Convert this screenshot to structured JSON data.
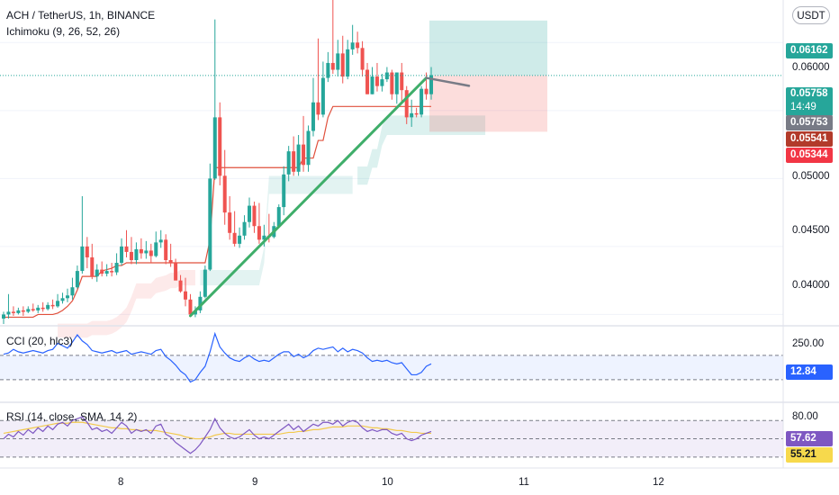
{
  "header": {
    "symbol": "ACH / TetherUS, 1h, BINANCE",
    "indicator": "Ichimoku (9, 26, 52, 26)",
    "currency": "USDT"
  },
  "colors": {
    "up": "#26a69a",
    "down": "#ef5350",
    "kijun": "#e0503c",
    "trendline": "#3fae6a",
    "cci_line": "#2962ff",
    "rsi_line": "#7e57c2",
    "rsi_ma": "#f2c94c",
    "target_zone": "#26a69a",
    "stop_zone": "#ef5350"
  },
  "price_axis": {
    "range": [
      0.0393,
      0.0628
    ],
    "ticks": [
      "0.06000",
      "0.05000",
      "0.04500",
      "0.04000"
    ]
  },
  "tags": {
    "target": "0.06162",
    "last": "0.05758",
    "countdown": "14:49",
    "grey": "0.05753",
    "dark_red": "0.05541",
    "red": "0.05344",
    "cci": "12.84",
    "rsi": "57.62",
    "rsi_ma": "55.21"
  },
  "x_axis": {
    "ticks": [
      "8",
      "9",
      "10",
      "11",
      "12"
    ]
  },
  "cci": {
    "label": "CCI (20, hlc3)",
    "tick": "250.00"
  },
  "rsi": {
    "label": "RSI (14, close, SMA, 14, 2)",
    "tick": "80.00"
  },
  "chart_data": {
    "type": "candlestick",
    "o": [
      0.0397,
      0.04,
      0.0402,
      0.0401,
      0.0403,
      0.0402,
      0.0404,
      0.0403,
      0.0405,
      0.0404,
      0.0407,
      0.0406,
      0.041,
      0.0412,
      0.0414,
      0.042,
      0.0432,
      0.045,
      0.0442,
      0.0428,
      0.0433,
      0.043,
      0.0432,
      0.0431,
      0.0438,
      0.045,
      0.0446,
      0.044,
      0.0448,
      0.0445,
      0.0447,
      0.0443,
      0.0453,
      0.0455,
      0.044,
      0.0438,
      0.0425,
      0.0417,
      0.0411,
      0.04,
      0.0403,
      0.0413,
      0.0433,
      0.05,
      0.0545,
      0.0502,
      0.0475,
      0.046,
      0.0452,
      0.0458,
      0.0468,
      0.048,
      0.0465,
      0.0455,
      0.0458,
      0.0457,
      0.0465,
      0.0479,
      0.0503,
      0.052,
      0.0505,
      0.0525,
      0.051,
      0.0535,
      0.0556,
      0.0547,
      0.0574,
      0.0585,
      0.058,
      0.0592,
      0.0575,
      0.0595,
      0.06,
      0.0596,
      0.058,
      0.0562,
      0.0575,
      0.0568,
      0.0573,
      0.0578,
      0.0562,
      0.0578,
      0.0565,
      0.0545,
      0.0548,
      0.0547,
      0.0566,
      0.0562
    ],
    "h": [
      0.0402,
      0.0415,
      0.0406,
      0.0405,
      0.0406,
      0.0406,
      0.0408,
      0.0407,
      0.0409,
      0.0409,
      0.0411,
      0.0415,
      0.0416,
      0.0419,
      0.0427,
      0.0436,
      0.0487,
      0.0457,
      0.0452,
      0.0437,
      0.0439,
      0.0437,
      0.0438,
      0.0445,
      0.0456,
      0.0462,
      0.0457,
      0.0453,
      0.0456,
      0.0454,
      0.0452,
      0.0461,
      0.0462,
      0.0459,
      0.0452,
      0.0441,
      0.0429,
      0.0427,
      0.0415,
      0.0406,
      0.0417,
      0.0436,
      0.0511,
      0.0617,
      0.0556,
      0.0521,
      0.0487,
      0.0476,
      0.0464,
      0.0473,
      0.0486,
      0.0483,
      0.0482,
      0.0466,
      0.0474,
      0.0468,
      0.0481,
      0.0509,
      0.0524,
      0.0531,
      0.0532,
      0.0546,
      0.0539,
      0.0574,
      0.0603,
      0.0586,
      0.0593,
      0.0632,
      0.0602,
      0.0605,
      0.0602,
      0.0613,
      0.0608,
      0.0601,
      0.0585,
      0.0582,
      0.0585,
      0.0577,
      0.0582,
      0.058,
      0.0578,
      0.0585,
      0.0568,
      0.0558,
      0.0552,
      0.0568,
      0.0578,
      0.0582
    ],
    "l": [
      0.0393,
      0.0397,
      0.0399,
      0.04,
      0.0399,
      0.0401,
      0.0402,
      0.0401,
      0.0402,
      0.0403,
      0.0404,
      0.0405,
      0.0408,
      0.0409,
      0.0411,
      0.0419,
      0.043,
      0.0434,
      0.0426,
      0.0424,
      0.0428,
      0.0428,
      0.0428,
      0.0429,
      0.0436,
      0.0442,
      0.0437,
      0.0437,
      0.0441,
      0.0441,
      0.0438,
      0.0442,
      0.0449,
      0.0437,
      0.0435,
      0.0426,
      0.0416,
      0.0406,
      0.04,
      0.0398,
      0.0401,
      0.0412,
      0.0432,
      0.0499,
      0.0495,
      0.0466,
      0.0455,
      0.045,
      0.0449,
      0.0455,
      0.0464,
      0.046,
      0.0452,
      0.045,
      0.0453,
      0.0456,
      0.0465,
      0.0473,
      0.0498,
      0.0502,
      0.0502,
      0.0505,
      0.0505,
      0.0531,
      0.0543,
      0.0545,
      0.0571,
      0.0577,
      0.0575,
      0.057,
      0.0573,
      0.0591,
      0.0592,
      0.0575,
      0.0562,
      0.0562,
      0.0564,
      0.0564,
      0.0571,
      0.0558,
      0.0555,
      0.0556,
      0.054,
      0.0538,
      0.0545,
      0.0545,
      0.0558,
      0.0558
    ],
    "c": [
      0.04,
      0.0402,
      0.0401,
      0.0403,
      0.0402,
      0.0404,
      0.0403,
      0.0405,
      0.0404,
      0.0407,
      0.0406,
      0.041,
      0.0412,
      0.0414,
      0.042,
      0.0432,
      0.045,
      0.0442,
      0.0428,
      0.0433,
      0.043,
      0.0432,
      0.0431,
      0.0438,
      0.045,
      0.0446,
      0.044,
      0.0448,
      0.0445,
      0.0447,
      0.0443,
      0.0453,
      0.0455,
      0.044,
      0.0438,
      0.0425,
      0.0417,
      0.0411,
      0.04,
      0.0403,
      0.0413,
      0.0433,
      0.05,
      0.0545,
      0.0502,
      0.0475,
      0.046,
      0.0452,
      0.0458,
      0.0468,
      0.048,
      0.0465,
      0.0455,
      0.0458,
      0.0457,
      0.0465,
      0.0479,
      0.0503,
      0.052,
      0.0505,
      0.0525,
      0.051,
      0.0535,
      0.0556,
      0.0547,
      0.0574,
      0.0585,
      0.058,
      0.0592,
      0.0575,
      0.0595,
      0.06,
      0.0596,
      0.058,
      0.0562,
      0.0575,
      0.0568,
      0.0573,
      0.0578,
      0.0562,
      0.0578,
      0.0565,
      0.0545,
      0.0548,
      0.0547,
      0.0566,
      0.0562,
      0.0576
    ],
    "kijun": [
      0.0398,
      0.0398,
      0.0398,
      0.0398,
      0.0398,
      0.0398,
      0.0398,
      0.04,
      0.04,
      0.04,
      0.04,
      0.0401,
      0.0403,
      0.0406,
      0.041,
      0.0418,
      0.0428,
      0.0428,
      0.0428,
      0.0428,
      0.0432,
      0.0433,
      0.0434,
      0.0436,
      0.0436,
      0.0438,
      0.0438,
      0.0438,
      0.0438,
      0.0438,
      0.0438,
      0.0438,
      0.0438,
      0.0438,
      0.0438,
      0.0438,
      0.0438,
      0.0438,
      0.0438,
      0.0438,
      0.0438,
      0.0438,
      0.0455,
      0.0508,
      0.0508,
      0.0508,
      0.0508,
      0.0508,
      0.0508,
      0.0508,
      0.0508,
      0.0508,
      0.0508,
      0.0508,
      0.0508,
      0.0508,
      0.0508,
      0.0508,
      0.0508,
      0.0508,
      0.0508,
      0.0515,
      0.0515,
      0.0515,
      0.0528,
      0.0528,
      0.0545,
      0.0553,
      0.0553,
      0.0553,
      0.0553,
      0.0553,
      0.0553,
      0.0553,
      0.0553,
      0.0553,
      0.0553,
      0.0553,
      0.0553,
      0.0553,
      0.0553,
      0.0553,
      0.0553,
      0.0553,
      0.0553,
      0.0553,
      0.0553,
      0.0553
    ],
    "trendline": {
      "from": 0.0399,
      "to": 0.0574
    },
    "long_position": {
      "entry": 0.05758,
      "target": 0.06162,
      "stop": 0.05344
    },
    "cci_values": [
      110,
      120,
      150,
      130,
      120,
      130,
      140,
      130,
      120,
      140,
      150,
      200,
      180,
      160,
      210,
      270,
      220,
      190,
      140,
      130,
      120,
      130,
      140,
      120,
      130,
      140,
      110,
      120,
      130,
      120,
      110,
      140,
      150,
      90,
      60,
      20,
      -30,
      -60,
      -120,
      -100,
      -40,
      10,
      130,
      280,
      170,
      120,
      80,
      60,
      50,
      80,
      100,
      70,
      50,
      60,
      50,
      80,
      110,
      130,
      130,
      90,
      110,
      80,
      100,
      140,
      160,
      150,
      160,
      170,
      130,
      160,
      130,
      150,
      140,
      120,
      80,
      50,
      60,
      50,
      60,
      40,
      30,
      40,
      -10,
      -60,
      -60,
      -40,
      10,
      30
    ],
    "cci_levels": [
      100,
      -100
    ],
    "rsi_values": [
      50,
      55,
      52,
      58,
      54,
      60,
      56,
      62,
      58,
      64,
      60,
      66,
      68,
      64,
      70,
      72,
      74,
      68,
      60,
      62,
      58,
      60,
      56,
      62,
      68,
      64,
      56,
      60,
      58,
      60,
      56,
      64,
      66,
      55,
      52,
      46,
      42,
      38,
      34,
      38,
      44,
      52,
      60,
      72,
      62,
      56,
      52,
      50,
      52,
      56,
      60,
      54,
      50,
      52,
      50,
      54,
      58,
      62,
      66,
      60,
      64,
      58,
      62,
      66,
      64,
      68,
      68,
      66,
      70,
      64,
      68,
      70,
      68,
      62,
      58,
      60,
      58,
      60,
      60,
      56,
      54,
      56,
      50,
      48,
      50,
      54,
      56,
      58
    ],
    "rsi_ma_values": [
      56,
      57,
      58,
      59,
      60,
      61,
      62,
      63,
      64,
      65,
      66,
      67,
      67,
      67,
      68,
      68,
      68,
      67,
      66,
      65,
      64,
      63,
      62,
      62,
      61,
      61,
      60,
      60,
      59,
      59,
      59,
      59,
      58,
      57,
      56,
      55,
      54,
      52,
      51,
      50,
      50,
      51,
      52,
      54,
      55,
      56,
      56,
      55,
      55,
      55,
      55,
      55,
      55,
      55,
      55,
      55,
      55,
      56,
      57,
      57,
      58,
      58,
      59,
      60,
      60,
      61,
      62,
      63,
      63,
      63,
      64,
      64,
      64,
      64,
      63,
      62,
      62,
      61,
      61,
      60,
      59,
      59,
      58,
      57,
      57,
      56,
      56,
      56
    ],
    "rsi_levels": [
      70,
      50,
      30
    ]
  }
}
